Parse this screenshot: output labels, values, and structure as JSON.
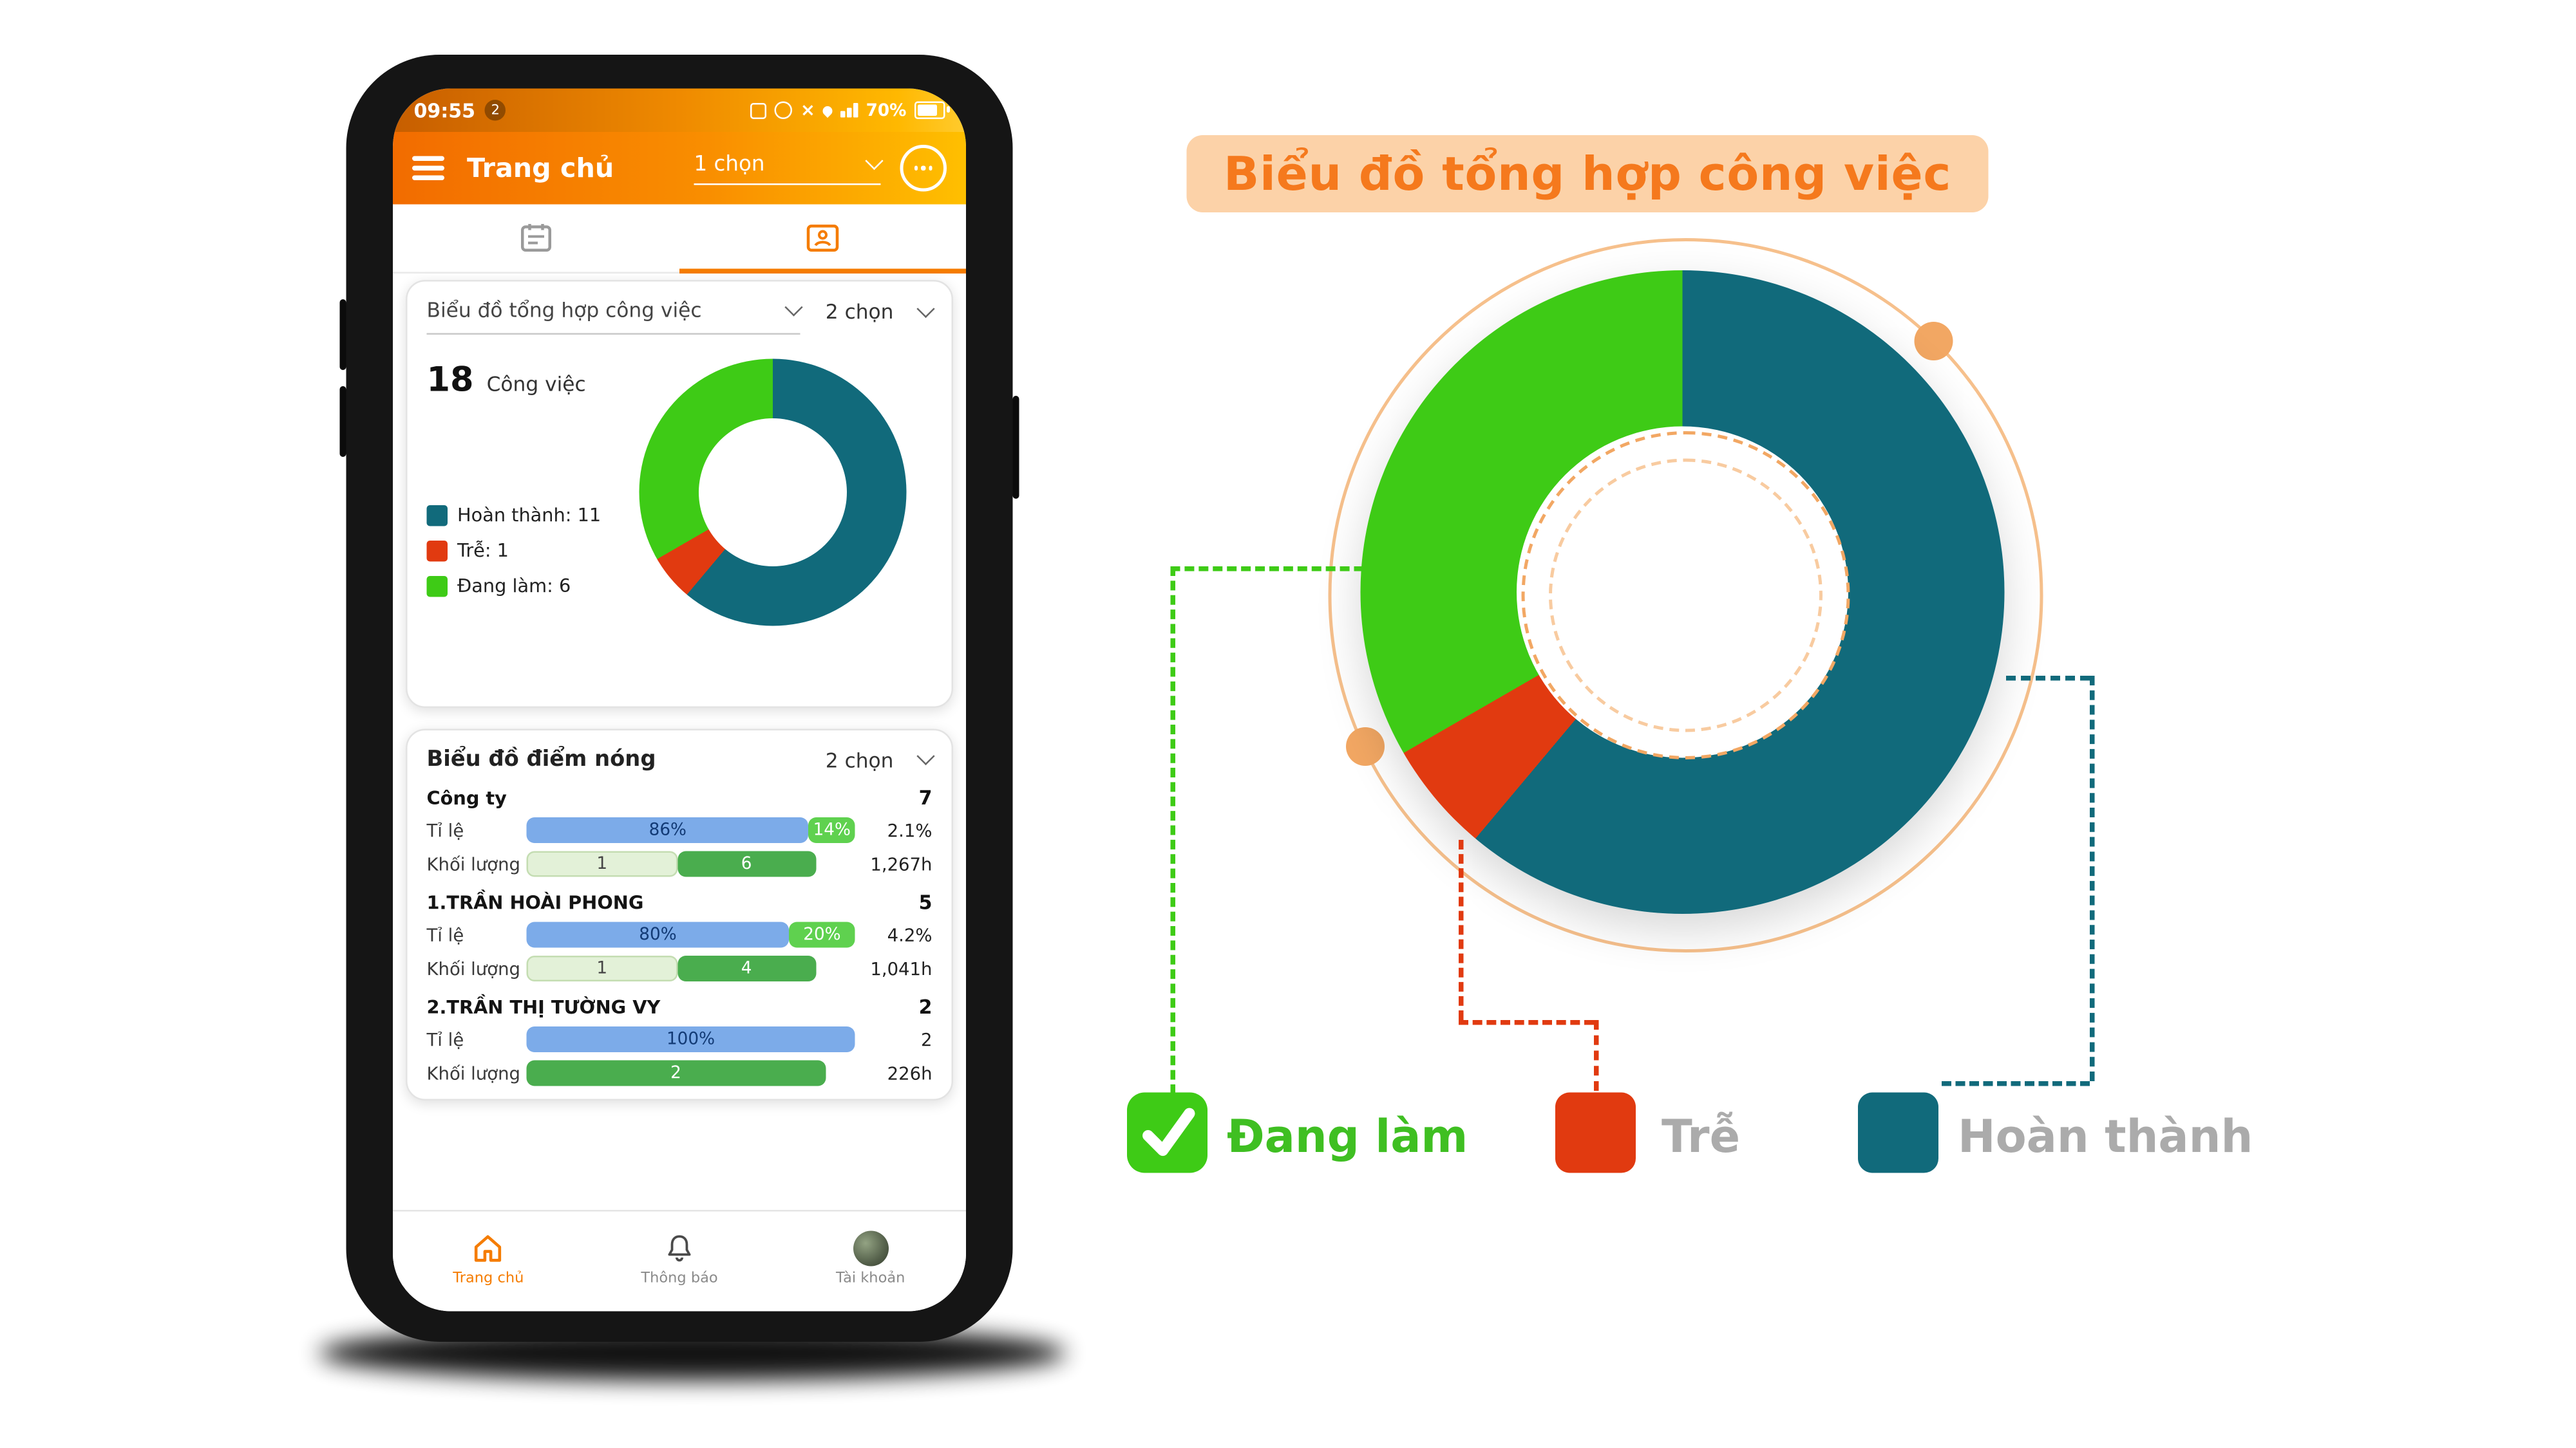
{
  "hero": {
    "title": "Biểu đồ tổng hợp công việc"
  },
  "colors": {
    "accent_orange": "#f57c00",
    "teal": "#116a7b",
    "red": "#e13a10",
    "green": "#3ecb16",
    "pill_bg": "#fcd2a8"
  },
  "phone": {
    "status_bar": {
      "time": "09:55",
      "badge": "2",
      "battery_pct": "70%",
      "icons": {
        "mute": "×"
      }
    },
    "app_bar": {
      "title": "Trang chủ",
      "selector": "1 chọn"
    },
    "cards": {
      "summary": {
        "dropdown_label": "Biểu đồ tổng hợp công việc",
        "selector": "2 chọn"
      },
      "hotspot": {
        "selector": "2 chọn"
      }
    },
    "bottom_nav": [
      {
        "label": "Trang chủ"
      },
      {
        "label": "Thông báo"
      },
      {
        "label": "Tài khoản"
      }
    ]
  },
  "big_legend": {
    "items": [
      {
        "label": "Đang làm"
      },
      {
        "label": "Trễ"
      },
      {
        "label": "Hoàn thành"
      }
    ]
  },
  "chart_data": [
    {
      "type": "pie",
      "variant": "donut",
      "title": "Biểu đồ tổng hợp công việc",
      "total": 18,
      "total_label": "Công việc",
      "series": [
        {
          "name": "Hoàn thành",
          "value": 11,
          "color": "#116a7b",
          "legend": "Hoàn thành: 11"
        },
        {
          "name": "Trễ",
          "value": 1,
          "color": "#e13a10",
          "legend": "Trễ: 1"
        },
        {
          "name": "Đang làm",
          "value": 6,
          "color": "#3ecb16",
          "legend": "Đang làm: 6"
        }
      ]
    },
    {
      "type": "bar",
      "title": "Biểu đồ điểm nóng",
      "row_labels": {
        "ratio": "Tỉ lệ",
        "volume": "Khối lượng"
      },
      "rows": [
        {
          "name": "Công ty",
          "count": "7",
          "ratio_main": {
            "label": "86%",
            "pct": 86
          },
          "ratio_chip": {
            "label": "14%",
            "pct": 14
          },
          "ratio_extra": "2.1%",
          "vol_a": {
            "label": "1",
            "pct": 46
          },
          "vol_b": {
            "label": "6",
            "pct": 42
          },
          "vol_extra": "1,267h"
        },
        {
          "name": "1.TRẦN HOÀI PHONG",
          "count": "5",
          "ratio_main": {
            "label": "80%",
            "pct": 80
          },
          "ratio_chip": {
            "label": "20%",
            "pct": 20
          },
          "ratio_extra": "4.2%",
          "vol_a": {
            "label": "1",
            "pct": 46
          },
          "vol_b": {
            "label": "4",
            "pct": 42
          },
          "vol_extra": "1,041h"
        },
        {
          "name": "2.TRẦN THỊ TƯỜNG VY",
          "count": "2",
          "ratio_main": {
            "label": "100%",
            "pct": 100
          },
          "ratio_extra": "2",
          "vol_b": {
            "label": "2",
            "pct": 91
          },
          "vol_extra": "226h"
        }
      ]
    }
  ]
}
